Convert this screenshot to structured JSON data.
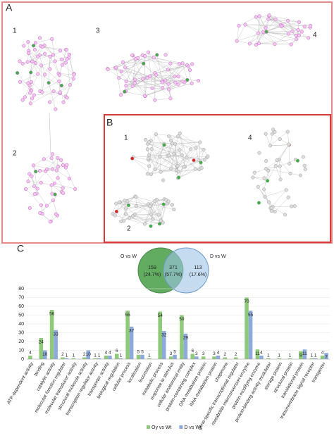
{
  "panels": {
    "a": {
      "label": "A",
      "clusters": [
        "1",
        "2",
        "3",
        "4"
      ]
    },
    "b": {
      "label": "B",
      "clusters": [
        "1",
        "4",
        "2"
      ]
    },
    "c": {
      "label": "C"
    }
  },
  "venn": {
    "sets": [
      {
        "name": "O vs W",
        "color": "#5aa85a"
      },
      {
        "name": "D vs W",
        "color": "#9cc3e6"
      }
    ],
    "regions": [
      {
        "count": 159,
        "percent": "(24.7%)"
      },
      {
        "count": 371,
        "percent": "(57.7%)"
      },
      {
        "count": 113,
        "percent": "(17.6%)"
      }
    ]
  },
  "chart_data": {
    "type": "bar",
    "categories": [
      "ATP-dependent activity",
      "binding",
      "catalytic activity",
      "molecular function regulator",
      "molecular transducer activity",
      "structural molecule activity",
      "transcription regulator activity",
      "transporter activity",
      "biological regulation",
      "cellular process",
      "localization",
      "locomotion",
      "metabolic process",
      "response to stimulus",
      "cellular anatomical entity",
      "protein-containing complex",
      "DNA metabolism protein",
      "RNA metabolism protein",
      "chaperone",
      "gene-specific transcriptional regulator",
      "metabolite interconversion enzyme",
      "protein modifying enzyme",
      "protein-binding activity modulator",
      "storage protein",
      "structural protein",
      "translational protein",
      "transmembrane signal receptor",
      "transporter"
    ],
    "series": [
      {
        "name": "Oy vs Wt",
        "color": "#8fc97a",
        "values": [
          4,
          24,
          56,
          2,
          1,
          2,
          1,
          4,
          6,
          55,
          5,
          1,
          54,
          3,
          50,
          6,
          3,
          3,
          2,
          2,
          70,
          11,
          1,
          1,
          1,
          9,
          1,
          4
        ]
      },
      {
        "name": "D vs Wt",
        "color": "#8eaadb",
        "values": [
          null,
          10,
          33,
          1,
          null,
          10,
          1,
          4,
          1,
          37,
          5,
          null,
          32,
          5,
          29,
          3,
          null,
          4,
          null,
          null,
          55,
          4,
          null,
          null,
          null,
          11,
          1,
          7
        ]
      }
    ],
    "ylim": [
      0,
      80
    ],
    "yticks": [
      0,
      10,
      20,
      30,
      40,
      50,
      60,
      70,
      80
    ],
    "grid": true,
    "legend": "bottom"
  }
}
